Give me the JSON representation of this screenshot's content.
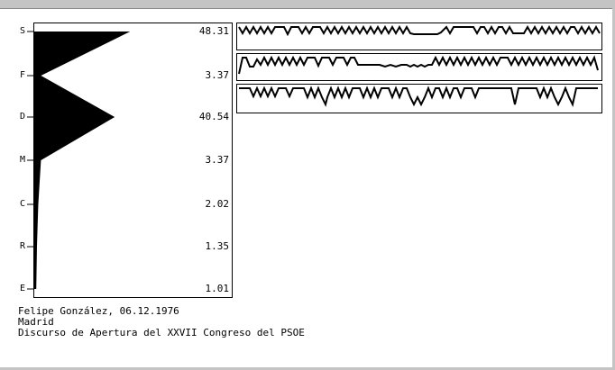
{
  "categories": [
    "S",
    "F",
    "D",
    "M",
    "C",
    "R",
    "E"
  ],
  "values": [
    "48.31",
    "3.37",
    "40.54",
    "3.37",
    "2.02",
    "1.35",
    "1.01"
  ],
  "chart_data": {
    "type": "area",
    "categories": [
      "S",
      "F",
      "D",
      "M",
      "C",
      "R",
      "E"
    ],
    "values": [
      48.31,
      3.37,
      40.54,
      3.37,
      2.02,
      1.35,
      1.01
    ]
  },
  "caption": {
    "line1": "Felipe González, 06.12.1976",
    "line2": "Madrid",
    "line3": "Discurso de Apertura del XXVII Congreso del PSOE"
  }
}
